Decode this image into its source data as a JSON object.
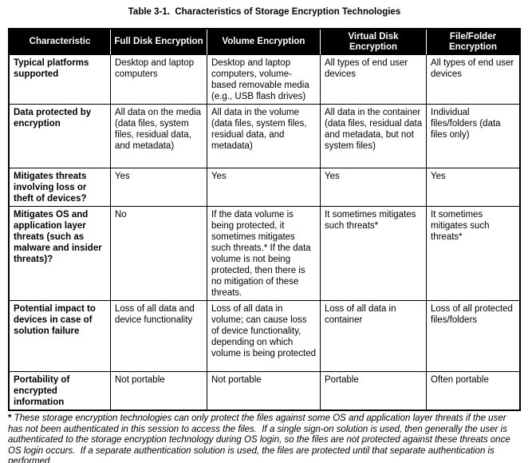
{
  "title": "Table 3-1.  Characteristics of Storage Encryption Technologies",
  "colors": {
    "header-bg": "#000000",
    "header-text": "#ffffff",
    "border": "#000000",
    "text": "#000000",
    "page-bg": "#ffffff",
    "header-divider": "#ffffff"
  },
  "table": {
    "headers": [
      "Characteristic",
      "Full Disk Encryption",
      "Volume Encryption",
      "Virtual Disk Encryption",
      "File/Folder Encryption"
    ],
    "rows": [
      {
        "cells": [
          "Typical platforms supported",
          "Desktop and laptop computers",
          "Desktop and laptop computers, volume-based removable media (e.g., USB flash drives)",
          "All types of end user devices",
          "All types of end user devices"
        ]
      },
      {
        "cells": [
          "Data protected by encryption",
          "All data on the media (data files, system files, residual data, and metadata)",
          "All data in the volume (data files, system files, residual data, and metadata)",
          "All data in the container (data files, residual data and metadata, but not system files)",
          "Individual files/folders (data files only)"
        ]
      },
      {
        "cells": [
          "Mitigates threats involving loss or theft of devices?",
          "Yes",
          "Yes",
          "Yes",
          "Yes"
        ]
      },
      {
        "cells": [
          "Mitigates OS and application layer threats (such as malware and insider threats)?",
          "No",
          "If the data volume is being protected, it sometimes mitigates such threats.* If the data volume is not being protected, then there is no mitigation of these threats.",
          "It sometimes mitigates such threats*",
          "It sometimes mitigates such threats*"
        ]
      },
      {
        "cells": [
          "Potential impact to devices in case of solution failure",
          "Loss of all data and device functionality",
          "Loss of all data in volume; can cause loss of device functionality, depending on which volume is being protected",
          "Loss of all data in container",
          "Loss of all protected files/folders"
        ]
      },
      {
        "cells": [
          "Portability of encrypted information",
          "Not portable",
          "Not portable",
          "Portable",
          "Often portable"
        ]
      }
    ]
  },
  "footnote": {
    "marker": "*",
    "text": " These storage encryption technologies can only protect the files against some OS and application layer threats if the user has not been authenticated in this session to access the files.  If a single sign-on solution is used, then generally the user is authenticated to the storage encryption technology during OS login, so the files are not protected against these threats once OS login occurs.  If a separate authentication solution is used, the files are protected until that separate authentication is performed."
  }
}
